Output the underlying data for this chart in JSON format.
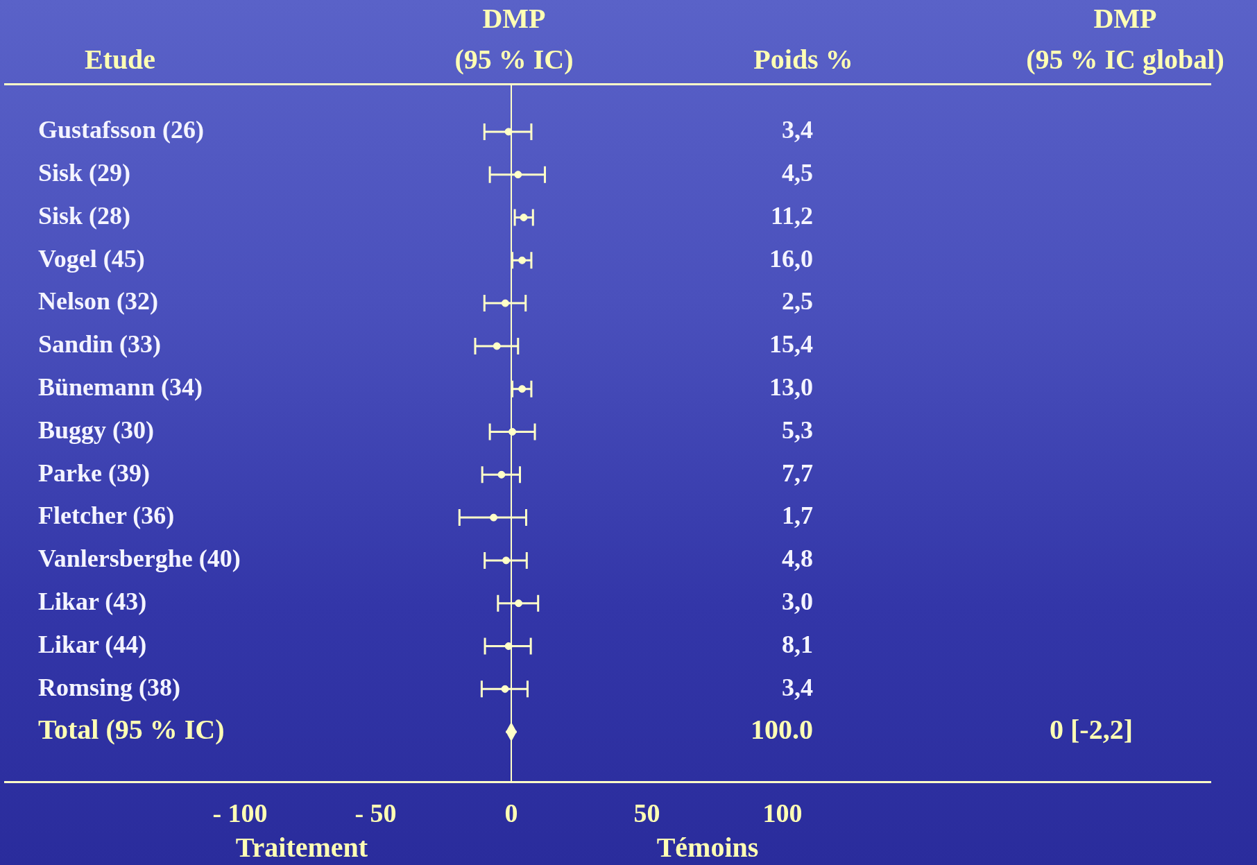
{
  "chart_data": {
    "type": "scatter",
    "orientation": "horizontal",
    "categories": [
      "Gustafsson (26)",
      "Sisk (29)",
      "Sisk (28)",
      "Vogel (45)",
      "Nelson (32)",
      "Sandin (33)",
      "Bünemann (34)",
      "Buggy (30)",
      "Parke (39)",
      "Fletcher (36)",
      "Vanlersberghe (40)",
      "Likar (43)",
      "Likar (44)",
      "Romsing (38)",
      "Total (95 % IC)"
    ],
    "series": [
      {
        "color": "#ffffc8",
        "marker": "circle",
        "values": [
          -1.0,
          2.5,
          4.6,
          4.0,
          -2.2,
          -5.3,
          4.0,
          0.4,
          -3.6,
          -6.5,
          -1.9,
          2.7,
          -1.0,
          -2.3,
          null
        ],
        "errors": [
          [
            -9.9,
            7.4
          ],
          [
            -7.9,
            12.4
          ],
          [
            1.3,
            8.0
          ],
          [
            0.4,
            7.4
          ],
          [
            -9.9,
            5.3
          ],
          [
            -13.3,
            2.5
          ],
          [
            0.4,
            7.4
          ],
          [
            -7.9,
            8.7
          ],
          [
            -10.7,
            3.2
          ],
          [
            -19.1,
            5.5
          ],
          [
            -9.8,
            5.7
          ],
          [
            -4.9,
            9.9
          ],
          [
            -9.7,
            7.2
          ],
          [
            -10.9,
            6.0
          ],
          null
        ]
      },
      {
        "color": "#ffffc8",
        "marker": "diamond",
        "values": [
          null,
          null,
          null,
          null,
          null,
          null,
          null,
          null,
          null,
          null,
          null,
          null,
          null,
          null,
          0
        ],
        "errors": [
          null,
          null,
          null,
          null,
          null,
          null,
          null,
          null,
          null,
          null,
          null,
          null,
          null,
          null,
          [
            -2,
            2
          ]
        ]
      }
    ],
    "xlim": [
      -100,
      100
    ],
    "xticks": [
      {
        "value": -100,
        "label": "- 100"
      },
      {
        "value": -50,
        "label": "- 50"
      },
      0,
      50,
      100
    ],
    "ref_lines": [
      {
        "axis": "x",
        "value": 0,
        "color": "#ffffc8"
      }
    ],
    "grid": false,
    "legend": false,
    "annotations": [
      "Etude",
      "DMP (95 % IC)",
      "Poids %",
      "DMP (95 % IC global)",
      "0 [-2,2]",
      "Traitement",
      "Témoins",
      "3,4",
      "4,5",
      "11,2",
      "16,0",
      "2,5",
      "15,4",
      "13,0",
      "5,3",
      "7,7",
      "1,7",
      "4,8",
      "3,0",
      "8,1",
      "3,4",
      "100.0"
    ]
  }
}
